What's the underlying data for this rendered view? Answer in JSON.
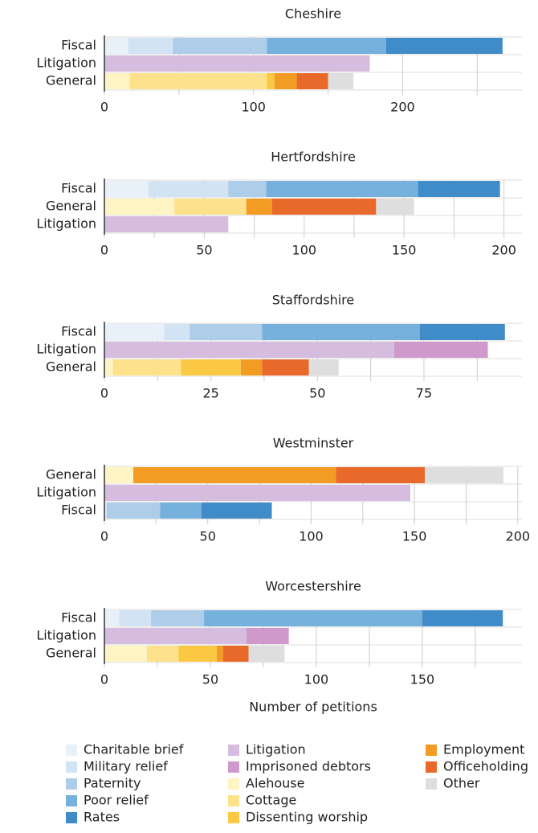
{
  "chart_data": [
    {
      "type": "bar",
      "title": "Cheshire",
      "categories": [
        "Fiscal",
        "Litigation",
        "General"
      ],
      "xlim": [
        0,
        280
      ],
      "xticks": [
        0,
        100,
        200
      ],
      "minor_xticks": [
        50,
        150,
        250
      ],
      "series": [
        {
          "values": [
            16,
            null,
            null
          ]
        },
        {
          "values": [
            30,
            null,
            null
          ]
        },
        {
          "values": [
            63,
            null,
            null
          ]
        },
        {
          "values": [
            80,
            null,
            null
          ]
        },
        {
          "values": [
            78,
            null,
            null
          ]
        },
        {
          "values": [
            null,
            178,
            null
          ]
        },
        {
          "values": [
            null,
            null,
            null
          ]
        },
        {
          "values": [
            null,
            null,
            17
          ]
        },
        {
          "values": [
            null,
            null,
            92
          ]
        },
        {
          "values": [
            null,
            null,
            5
          ]
        },
        {
          "values": [
            null,
            null,
            15
          ]
        },
        {
          "values": [
            null,
            null,
            21
          ]
        },
        {
          "values": [
            null,
            null,
            17
          ]
        }
      ]
    },
    {
      "type": "bar",
      "title": "Hertfordshire",
      "categories": [
        "Fiscal",
        "General",
        "Litigation"
      ],
      "xlim": [
        0,
        209
      ],
      "xticks": [
        0,
        50,
        100,
        150,
        200
      ],
      "minor_xticks": [
        25,
        75,
        125,
        175
      ],
      "series": [
        {
          "values": [
            22,
            null,
            null
          ]
        },
        {
          "values": [
            40,
            null,
            null
          ]
        },
        {
          "values": [
            19,
            null,
            null
          ]
        },
        {
          "values": [
            76,
            null,
            null
          ]
        },
        {
          "values": [
            41,
            null,
            null
          ]
        },
        {
          "values": [
            null,
            null,
            62
          ]
        },
        {
          "values": [
            null,
            null,
            null
          ]
        },
        {
          "values": [
            null,
            35,
            null
          ]
        },
        {
          "values": [
            null,
            36,
            null
          ]
        },
        {
          "values": [
            null,
            null,
            null
          ]
        },
        {
          "values": [
            null,
            13,
            null
          ]
        },
        {
          "values": [
            null,
            52,
            null
          ]
        },
        {
          "values": [
            null,
            19,
            null
          ]
        }
      ]
    },
    {
      "type": "bar",
      "title": "Staffordshire",
      "categories": [
        "Fiscal",
        "Litigation",
        "General"
      ],
      "xlim": [
        0,
        98
      ],
      "xticks": [
        0,
        25,
        50,
        75
      ],
      "minor_xticks": [
        12.5,
        37.5,
        62.5,
        87.5
      ],
      "series": [
        {
          "values": [
            14,
            null,
            null
          ]
        },
        {
          "values": [
            6,
            null,
            null
          ]
        },
        {
          "values": [
            17,
            null,
            null
          ]
        },
        {
          "values": [
            37,
            null,
            null
          ]
        },
        {
          "values": [
            20,
            null,
            null
          ]
        },
        {
          "values": [
            null,
            68,
            null
          ]
        },
        {
          "values": [
            null,
            22,
            null
          ]
        },
        {
          "values": [
            null,
            null,
            2
          ]
        },
        {
          "values": [
            null,
            null,
            16
          ]
        },
        {
          "values": [
            null,
            null,
            14
          ]
        },
        {
          "values": [
            null,
            null,
            5
          ]
        },
        {
          "values": [
            null,
            null,
            11
          ]
        },
        {
          "values": [
            null,
            null,
            7
          ]
        }
      ]
    },
    {
      "type": "bar",
      "title": "Westminster",
      "categories": [
        "General",
        "Litigation",
        "Fiscal"
      ],
      "xlim": [
        0,
        202
      ],
      "xticks": [
        0,
        50,
        100,
        150,
        200
      ],
      "minor_xticks": [
        25,
        75,
        125,
        175
      ],
      "series": [
        {
          "values": [
            null,
            null,
            1
          ]
        },
        {
          "values": [
            null,
            null,
            null
          ]
        },
        {
          "values": [
            null,
            null,
            26
          ]
        },
        {
          "values": [
            null,
            null,
            20
          ]
        },
        {
          "values": [
            null,
            null,
            34
          ]
        },
        {
          "values": [
            null,
            148,
            null
          ]
        },
        {
          "values": [
            null,
            null,
            null
          ]
        },
        {
          "values": [
            14,
            null,
            null
          ]
        },
        {
          "values": [
            null,
            null,
            null
          ]
        },
        {
          "values": [
            null,
            null,
            null
          ]
        },
        {
          "values": [
            98,
            null,
            null
          ]
        },
        {
          "values": [
            43,
            null,
            null
          ]
        },
        {
          "values": [
            38,
            null,
            null
          ]
        }
      ]
    },
    {
      "type": "bar",
      "title": "Worcestershire",
      "categories": [
        "Fiscal",
        "Litigation",
        "General"
      ],
      "xlim": [
        0,
        197
      ],
      "xticks": [
        0,
        50,
        100,
        150
      ],
      "minor_xticks": [
        25,
        75,
        125,
        175
      ],
      "series": [
        {
          "values": [
            7,
            null,
            null
          ]
        },
        {
          "values": [
            15,
            null,
            null
          ]
        },
        {
          "values": [
            25,
            null,
            null
          ]
        },
        {
          "values": [
            103,
            null,
            null
          ]
        },
        {
          "values": [
            38,
            null,
            null
          ]
        },
        {
          "values": [
            null,
            67,
            null
          ]
        },
        {
          "values": [
            null,
            20,
            null
          ]
        },
        {
          "values": [
            null,
            null,
            20
          ]
        },
        {
          "values": [
            null,
            null,
            15
          ]
        },
        {
          "values": [
            null,
            null,
            18
          ]
        },
        {
          "values": [
            null,
            null,
            3
          ]
        },
        {
          "values": [
            null,
            null,
            12
          ]
        },
        {
          "values": [
            null,
            null,
            17
          ]
        }
      ]
    }
  ],
  "x_label": "Number of petitions",
  "legend": [
    {
      "name": "Charitable brief",
      "color": "#e8f0fa"
    },
    {
      "name": "Military relief",
      "color": "#d2e3f4"
    },
    {
      "name": "Paternity",
      "color": "#aecde8"
    },
    {
      "name": "Poor relief",
      "color": "#76b0dd"
    },
    {
      "name": "Rates",
      "color": "#3f8cc9"
    },
    {
      "name": "Litigation",
      "color": "#d6bddf"
    },
    {
      "name": "Imprisoned debtors",
      "color": "#cf9acb"
    },
    {
      "name": "Alehouse",
      "color": "#fff5c4"
    },
    {
      "name": "Cottage",
      "color": "#fde18b"
    },
    {
      "name": "Dissenting worship",
      "color": "#fbc844"
    },
    {
      "name": "Employment",
      "color": "#f39c24"
    },
    {
      "name": "Officeholding",
      "color": "#e8692a"
    },
    {
      "name": "Other",
      "color": "#dedede"
    }
  ]
}
